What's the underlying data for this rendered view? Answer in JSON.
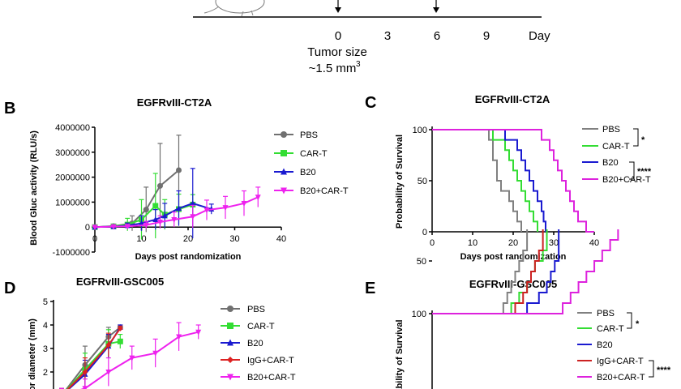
{
  "timeline": {
    "ticks": [
      "0",
      "3",
      "6",
      "9"
    ],
    "unit": "Day",
    "note_line1": "Tumor size",
    "note_line2": "~1.5 mm",
    "note_sup": "3"
  },
  "chart_data": [
    {
      "panel": "B",
      "type": "line",
      "title": "EGFRvIII-CT2A",
      "xlabel": "Days post randomization",
      "ylabel": "Blood Gluc activity (RLU/s)",
      "xlim": [
        0,
        40
      ],
      "ylim": [
        -1000000,
        4000000
      ],
      "xticks": [
        0,
        10,
        20,
        30,
        40
      ],
      "yticks": [
        -1000000,
        0,
        1000000,
        2000000,
        3000000,
        4000000
      ],
      "ytick_labels": [
        "-1000000",
        "0",
        "1000000",
        "2000000",
        "3000000",
        "4000000"
      ],
      "series": [
        {
          "name": "PBS",
          "color": "#707070",
          "marker": "circle",
          "x": [
            0,
            4,
            8,
            11,
            14,
            18
          ],
          "y": [
            0,
            40000,
            150000,
            700000,
            1650000,
            2280000
          ],
          "err": [
            30000,
            60000,
            300000,
            900000,
            1700000,
            1400000
          ]
        },
        {
          "name": "CAR-T",
          "color": "#33dd33",
          "marker": "square",
          "x": [
            0,
            4,
            7,
            10,
            13,
            15,
            18,
            21
          ],
          "y": [
            0,
            30000,
            100000,
            300000,
            850000,
            500000,
            720000,
            900000
          ],
          "err": [
            20000,
            60000,
            250000,
            800000,
            1300000,
            600000,
            600000,
            400000
          ]
        },
        {
          "name": "B20",
          "color": "#1a1ad0",
          "marker": "triangle",
          "x": [
            0,
            4,
            7,
            10,
            13,
            15,
            18,
            21,
            25
          ],
          "y": [
            0,
            20000,
            60000,
            150000,
            300000,
            450000,
            750000,
            950000,
            720000
          ],
          "err": [
            20000,
            40000,
            100000,
            300000,
            400000,
            500000,
            700000,
            1400000,
            200000
          ]
        },
        {
          "name": "B20+CAR-T",
          "color": "#ee22ee",
          "marker": "triangle-down",
          "x": [
            0,
            4,
            7,
            11,
            14,
            17,
            21,
            24,
            28,
            32,
            35
          ],
          "y": [
            0,
            20000,
            30000,
            80000,
            200000,
            300000,
            420000,
            680000,
            780000,
            950000,
            1200000
          ],
          "err": [
            20000,
            30000,
            40000,
            150000,
            250000,
            300000,
            450000,
            400000,
            450000,
            500000,
            400000
          ]
        }
      ]
    },
    {
      "panel": "C",
      "type": "line",
      "title": "EGFRvIII-CT2A",
      "xlabel": "Days post randomization",
      "ylabel": "Probability of Survival",
      "xlim": [
        0,
        40
      ],
      "ylim": [
        0,
        100
      ],
      "xticks": [
        0,
        10,
        20,
        30,
        40
      ],
      "yticks": [
        0,
        50,
        100
      ],
      "significance": [
        {
          "between": [
            "PBS",
            "CAR-T"
          ],
          "label": "*"
        },
        {
          "between": [
            "B20",
            "B20+CAR-T"
          ],
          "label": "****"
        }
      ],
      "series": [
        {
          "name": "PBS",
          "color": "#808080",
          "steps": [
            [
              0,
              100
            ],
            [
              14,
              100
            ],
            [
              14,
              90
            ],
            [
              15,
              90
            ],
            [
              15,
              70
            ],
            [
              16,
              70
            ],
            [
              16,
              50
            ],
            [
              17,
              50
            ],
            [
              17,
              40
            ],
            [
              19,
              40
            ],
            [
              19,
              30
            ],
            [
              20,
              30
            ],
            [
              20,
              20
            ],
            [
              21,
              20
            ],
            [
              21,
              10
            ],
            [
              22,
              10
            ],
            [
              22,
              0
            ]
          ]
        },
        {
          "name": "CAR-T",
          "color": "#33dd33",
          "steps": [
            [
              0,
              100
            ],
            [
              15,
              100
            ],
            [
              15,
              90
            ],
            [
              18,
              90
            ],
            [
              18,
              80
            ],
            [
              19,
              80
            ],
            [
              19,
              70
            ],
            [
              20,
              70
            ],
            [
              20,
              60
            ],
            [
              21,
              60
            ],
            [
              21,
              50
            ],
            [
              22,
              50
            ],
            [
              22,
              40
            ],
            [
              23,
              40
            ],
            [
              23,
              30
            ],
            [
              24,
              30
            ],
            [
              24,
              20
            ],
            [
              25,
              20
            ],
            [
              25,
              10
            ],
            [
              26,
              10
            ],
            [
              26,
              0
            ]
          ]
        },
        {
          "name": "B20",
          "color": "#1a1ad0",
          "steps": [
            [
              0,
              100
            ],
            [
              18,
              100
            ],
            [
              18,
              90
            ],
            [
              21,
              90
            ],
            [
              21,
              80
            ],
            [
              22,
              80
            ],
            [
              22,
              70
            ],
            [
              23,
              70
            ],
            [
              23,
              60
            ],
            [
              24,
              60
            ],
            [
              24,
              50
            ],
            [
              25,
              50
            ],
            [
              25,
              40
            ],
            [
              26,
              40
            ],
            [
              26,
              30
            ],
            [
              27,
              30
            ],
            [
              27,
              20
            ],
            [
              27.5,
              20
            ],
            [
              27.5,
              10
            ],
            [
              28,
              10
            ],
            [
              28,
              0
            ]
          ]
        },
        {
          "name": "B20+CAR-T",
          "color": "#dd22dd",
          "steps": [
            [
              0,
              100
            ],
            [
              27,
              100
            ],
            [
              27,
              90
            ],
            [
              29,
              90
            ],
            [
              29,
              80
            ],
            [
              30,
              80
            ],
            [
              30,
              70
            ],
            [
              31,
              70
            ],
            [
              31,
              60
            ],
            [
              32,
              60
            ],
            [
              32,
              50
            ],
            [
              33,
              50
            ],
            [
              33,
              40
            ],
            [
              34,
              40
            ],
            [
              34,
              30
            ],
            [
              35,
              30
            ],
            [
              35,
              20
            ],
            [
              36,
              20
            ],
            [
              36,
              10
            ],
            [
              38,
              10
            ],
            [
              38,
              0
            ],
            [
              40,
              0
            ]
          ]
        }
      ]
    },
    {
      "panel": "D",
      "type": "line",
      "title": "EGFRvIII-GSC005",
      "ylabel": "or diameter (mm)",
      "ylim": [
        0,
        5
      ],
      "yticks": [
        2,
        3,
        4,
        5
      ],
      "x_range_days": [
        0,
        45
      ],
      "series": [
        {
          "name": "PBS",
          "color": "#707070",
          "marker": "circle",
          "x": [
            0,
            6,
            12,
            15
          ],
          "y": [
            1.0,
            2.3,
            3.5,
            3.9
          ],
          "err": [
            0.3,
            0.8,
            0.4,
            0.1
          ]
        },
        {
          "name": "CAR-T",
          "color": "#33dd33",
          "marker": "square",
          "x": [
            0,
            6,
            12,
            15
          ],
          "y": [
            1.0,
            2.1,
            3.2,
            3.3
          ],
          "err": [
            0.3,
            0.7,
            0.6,
            0.3
          ]
        },
        {
          "name": "B20",
          "color": "#1a1ad0",
          "marker": "triangle",
          "x": [
            0,
            6,
            12,
            15
          ],
          "y": [
            1.0,
            1.9,
            3.1,
            3.9
          ],
          "err": [
            0.3,
            0.6,
            0.5,
            0.1
          ]
        },
        {
          "name": "IgG+CAR-T",
          "color": "#dd2222",
          "marker": "diamond",
          "x": [
            0,
            6,
            12,
            15
          ],
          "y": [
            1.0,
            2.0,
            3.15,
            3.85
          ],
          "err": [
            0.3,
            0.6,
            0.5,
            0.1
          ]
        },
        {
          "name": "B20+CAR-T",
          "color": "#ee22ee",
          "marker": "triangle-down",
          "x": [
            0,
            6,
            12,
            18,
            24,
            30,
            35
          ],
          "y": [
            1.0,
            1.3,
            2.0,
            2.6,
            2.8,
            3.5,
            3.7
          ],
          "err": [
            0.3,
            0.4,
            0.6,
            0.5,
            0.6,
            0.6,
            0.3
          ]
        }
      ]
    },
    {
      "panel": "E",
      "type": "line",
      "title": "EGFRvIII-GSC005",
      "ylabel": "ability of Survival",
      "ylim": [
        0,
        100
      ],
      "yticks": [
        50,
        100
      ],
      "significance": [
        {
          "between": [
            "PBS",
            "CAR-T"
          ],
          "label": "*"
        },
        {
          "between": [
            "IgG+CAR-T",
            "B20+CAR-T"
          ],
          "label": "****"
        }
      ],
      "series": [
        {
          "name": "PBS",
          "color": "#808080",
          "steps": [
            [
              0,
              100
            ],
            [
              18,
              100
            ],
            [
              18,
              90
            ],
            [
              19,
              90
            ],
            [
              19,
              80
            ],
            [
              20,
              80
            ],
            [
              20,
              70
            ],
            [
              21,
              70
            ],
            [
              21,
              60
            ],
            [
              22,
              60
            ],
            [
              22,
              50
            ],
            [
              23,
              50
            ],
            [
              23,
              40
            ],
            [
              24,
              40
            ],
            [
              24,
              20
            ]
          ]
        },
        {
          "name": "CAR-T",
          "color": "#33dd33",
          "steps": [
            [
              0,
              100
            ],
            [
              20,
              100
            ],
            [
              20,
              90
            ],
            [
              22,
              90
            ],
            [
              22,
              80
            ],
            [
              24,
              80
            ],
            [
              24,
              70
            ],
            [
              25,
              70
            ],
            [
              25,
              60
            ],
            [
              26,
              60
            ],
            [
              26,
              50
            ],
            [
              28,
              50
            ],
            [
              28,
              40
            ],
            [
              29,
              40
            ],
            [
              29,
              20
            ]
          ]
        },
        {
          "name": "B20",
          "color": "#1a1ad0",
          "steps": [
            [
              0,
              100
            ],
            [
              24,
              100
            ],
            [
              24,
              90
            ],
            [
              27,
              90
            ],
            [
              27,
              80
            ],
            [
              29,
              80
            ],
            [
              29,
              70
            ],
            [
              30,
              70
            ],
            [
              30,
              60
            ],
            [
              31,
              60
            ],
            [
              31,
              50
            ],
            [
              32,
              50
            ],
            [
              32,
              20
            ]
          ]
        },
        {
          "name": "IgG+CAR-T",
          "color": "#cc2222",
          "steps": [
            [
              0,
              100
            ],
            [
              21,
              100
            ],
            [
              21,
              90
            ],
            [
              23,
              90
            ],
            [
              23,
              80
            ],
            [
              24,
              80
            ],
            [
              24,
              70
            ],
            [
              25,
              70
            ],
            [
              25,
              60
            ],
            [
              26,
              60
            ],
            [
              26,
              50
            ],
            [
              27,
              50
            ],
            [
              27,
              40
            ],
            [
              28,
              40
            ],
            [
              28,
              20
            ]
          ]
        },
        {
          "name": "B20+CAR-T",
          "color": "#dd22dd",
          "steps": [
            [
              0,
              100
            ],
            [
              33,
              100
            ],
            [
              33,
              90
            ],
            [
              35,
              90
            ],
            [
              35,
              80
            ],
            [
              37,
              80
            ],
            [
              37,
              70
            ],
            [
              39,
              70
            ],
            [
              39,
              60
            ],
            [
              41,
              60
            ],
            [
              41,
              50
            ],
            [
              43,
              50
            ],
            [
              43,
              40
            ],
            [
              45,
              40
            ],
            [
              45,
              30
            ],
            [
              47,
              30
            ],
            [
              47,
              20
            ]
          ]
        }
      ]
    }
  ]
}
